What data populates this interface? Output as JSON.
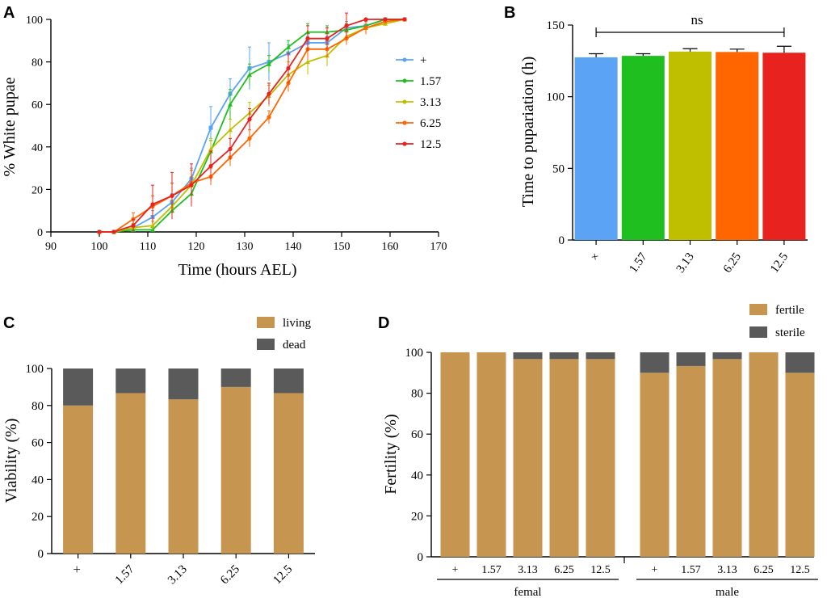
{
  "colors": {
    "plus": "#5BA4F5",
    "c157": "#1FBF1F",
    "c313": "#BFBF00",
    "c625": "#FF6600",
    "c125": "#E8221E",
    "living": "#C69651",
    "dead": "#5A5A5A",
    "axis": "#000000"
  },
  "chart_data": [
    {
      "panel": "A",
      "type": "line",
      "xlabel": "Time (hours AEL)",
      "ylabel": "% White pupae",
      "xlim": [
        90,
        170
      ],
      "ylim": [
        0,
        100
      ],
      "xticks": [
        "90",
        "100",
        "110",
        "120",
        "130",
        "140",
        "150",
        "160",
        "170"
      ],
      "yticks": [
        "0",
        "20",
        "40",
        "60",
        "80",
        "100"
      ],
      "legend_position": "right",
      "series": [
        {
          "name": "+",
          "color_key": "plus",
          "x": [
            100,
            103,
            107,
            111,
            115,
            119,
            123,
            127,
            131,
            135,
            139,
            143,
            147,
            151,
            155,
            159,
            163
          ],
          "y": [
            0,
            0,
            2,
            7,
            14,
            25,
            49,
            65,
            77,
            80,
            84,
            89,
            89,
            96,
            97,
            100,
            100
          ],
          "err": [
            0,
            0,
            2,
            3,
            4,
            5,
            10,
            7,
            10,
            9,
            4,
            3,
            3,
            3,
            2,
            0,
            0
          ]
        },
        {
          "name": "1.57",
          "color_key": "c157",
          "x": [
            100,
            103,
            107,
            111,
            115,
            119,
            123,
            127,
            131,
            135,
            139,
            143,
            147,
            151,
            155,
            159,
            163
          ],
          "y": [
            0,
            0,
            1,
            1,
            10,
            18,
            38,
            60,
            74,
            79,
            87,
            94,
            94,
            95,
            97,
            100,
            100
          ],
          "err": [
            0,
            0,
            1,
            1,
            3,
            4,
            5,
            7,
            5,
            4,
            3,
            4,
            3,
            3,
            2,
            0,
            0
          ]
        },
        {
          "name": "3.13",
          "color_key": "c313",
          "x": [
            100,
            103,
            107,
            111,
            115,
            119,
            123,
            127,
            131,
            135,
            139,
            143,
            147,
            151,
            155,
            159,
            163
          ],
          "y": [
            0,
            0,
            2,
            3,
            12,
            22,
            39,
            48,
            56,
            64,
            74,
            80,
            83,
            92,
            96,
            98,
            100
          ],
          "err": [
            0,
            0,
            2,
            2,
            3,
            4,
            5,
            5,
            5,
            5,
            6,
            6,
            5,
            4,
            3,
            1,
            0
          ]
        },
        {
          "name": "6.25",
          "color_key": "c625",
          "x": [
            100,
            103,
            107,
            111,
            115,
            119,
            123,
            127,
            131,
            135,
            139,
            143,
            147,
            151,
            155,
            159,
            163
          ],
          "y": [
            0,
            0,
            6,
            12,
            17,
            23,
            26,
            35,
            44,
            54,
            70,
            86,
            86,
            91,
            96,
            99,
            100
          ],
          "err": [
            0,
            0,
            3,
            5,
            6,
            6,
            4,
            4,
            4,
            3,
            4,
            5,
            4,
            3,
            3,
            1,
            0
          ]
        },
        {
          "name": "12.5",
          "color_key": "c125",
          "x": [
            100,
            103,
            107,
            111,
            115,
            119,
            123,
            127,
            131,
            135,
            139,
            143,
            147,
            151,
            155,
            159,
            163
          ],
          "y": [
            0,
            0,
            3,
            13,
            17,
            22,
            31,
            39,
            53,
            65,
            77,
            91,
            91,
            97,
            100,
            100,
            100
          ],
          "err": [
            0,
            0,
            3,
            9,
            11,
            10,
            7,
            5,
            5,
            5,
            7,
            6,
            5,
            6,
            0,
            0,
            0
          ]
        }
      ]
    },
    {
      "panel": "B",
      "type": "bar",
      "ylabel": "Time to pupariation (h)",
      "ylim": [
        0,
        150
      ],
      "yticks": [
        "0",
        "50",
        "100",
        "150"
      ],
      "categories": [
        "×",
        "1.57",
        "3.13",
        "6.25",
        "12.5"
      ],
      "color_keys": [
        "plus",
        "c157",
        "c313",
        "c625",
        "c125"
      ],
      "values": [
        127.5,
        128.5,
        131.5,
        131.2,
        130.7
      ],
      "err": [
        2.5,
        1.5,
        2.0,
        2.0,
        4.5
      ],
      "annotation": "ns"
    },
    {
      "panel": "C",
      "type": "bar",
      "stacked": true,
      "ylabel": "Viability (%)",
      "ylim": [
        0,
        100
      ],
      "yticks": [
        "0",
        "20",
        "40",
        "60",
        "80",
        "100"
      ],
      "categories": [
        "×",
        "1.57",
        "3.13",
        "6.25",
        "12.5"
      ],
      "series": [
        {
          "name": "living",
          "color_key": "living",
          "values": [
            80,
            86.7,
            83.3,
            90,
            86.7
          ]
        },
        {
          "name": "dead",
          "color_key": "dead",
          "values": [
            20,
            13.3,
            16.7,
            10,
            13.3
          ]
        }
      ],
      "legend_position": "top-right"
    },
    {
      "panel": "D",
      "type": "bar",
      "stacked": true,
      "ylabel": "Fertility (%)",
      "ylim": [
        0,
        100
      ],
      "yticks": [
        "0",
        "20",
        "40",
        "60",
        "80",
        "100"
      ],
      "groups": [
        {
          "label": "femal",
          "categories": [
            "+",
            "1.57",
            "3.13",
            "6.25",
            "12.5"
          ],
          "fertile": [
            100,
            100,
            96.7,
            96.7,
            96.7
          ],
          "sterile": [
            0,
            0,
            3.3,
            3.3,
            3.3
          ]
        },
        {
          "label": "male",
          "categories": [
            "+",
            "1.57",
            "3.13",
            "6.25",
            "12.5"
          ],
          "fertile": [
            90,
            93.3,
            96.7,
            100,
            90
          ],
          "sterile": [
            10,
            6.7,
            3.3,
            0,
            10
          ]
        }
      ],
      "series_names": [
        "fertile",
        "sterile"
      ],
      "color_keys": [
        "living",
        "dead"
      ],
      "legend_position": "top-right"
    }
  ],
  "panel_labels": [
    "A",
    "B",
    "C",
    "D"
  ]
}
